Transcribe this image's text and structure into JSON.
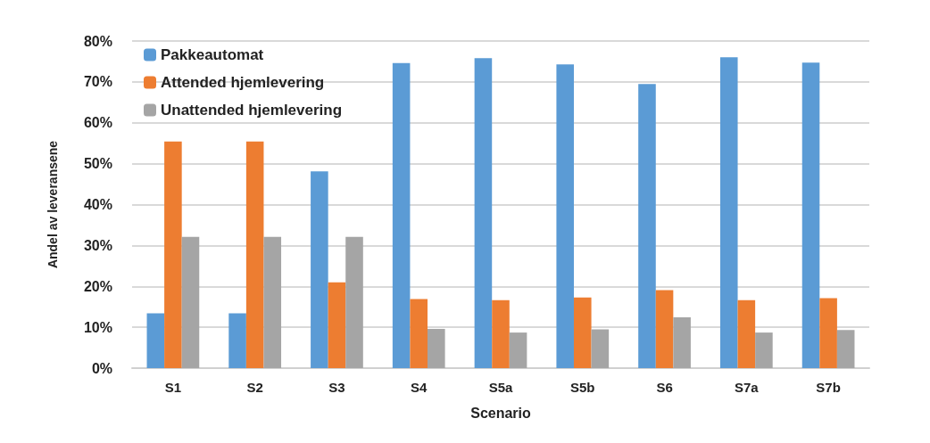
{
  "chart_data": {
    "type": "bar",
    "xlabel": "Scenario",
    "ylabel": "Andel av leveransene",
    "categories": [
      "S1",
      "S2",
      "S3",
      "S4",
      "S5a",
      "S5b",
      "S6",
      "S7a",
      "S7b"
    ],
    "series": [
      {
        "name": "Pakkeautomat",
        "color": "#5b9bd5",
        "values": [
          13.4,
          13.4,
          48.1,
          74.6,
          75.8,
          74.3,
          69.5,
          76.0,
          74.7
        ]
      },
      {
        "name": "Attended hjemlevering",
        "color": "#ed7d31",
        "values": [
          55.4,
          55.4,
          21.0,
          16.9,
          16.6,
          17.3,
          19.1,
          16.6,
          17.1
        ]
      },
      {
        "name": "Unattended hjemlevering",
        "color": "#a5a5a5",
        "values": [
          32.1,
          32.1,
          32.1,
          9.6,
          8.7,
          9.5,
          12.4,
          8.7,
          9.3
        ]
      }
    ],
    "ylim": [
      0,
      80
    ],
    "yticks": [
      {
        "value": 0,
        "label": "0%"
      },
      {
        "value": 10,
        "label": "10%"
      },
      {
        "value": 20,
        "label": "20%"
      },
      {
        "value": 30,
        "label": "30%"
      },
      {
        "value": 40,
        "label": "40%"
      },
      {
        "value": 50,
        "label": "50%"
      },
      {
        "value": 60,
        "label": "60%"
      },
      {
        "value": 70,
        "label": "70%"
      },
      {
        "value": 80,
        "label": "80%"
      }
    ],
    "grid": "y",
    "legend": "top left"
  }
}
